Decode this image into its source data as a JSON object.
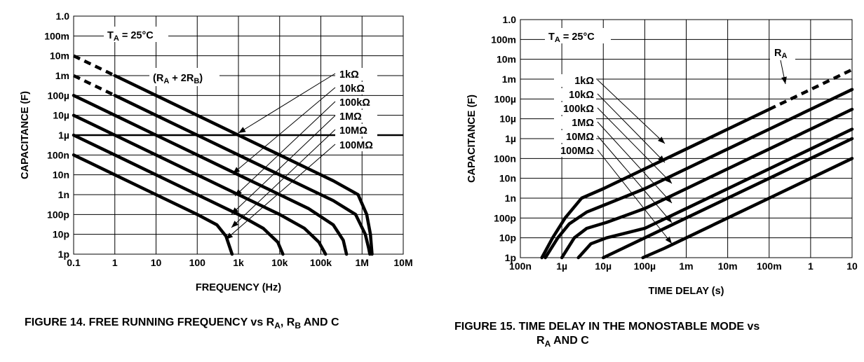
{
  "figure14": {
    "caption_prefix": "FIGURE 14.  FREE RUNNING FREQUENCY vs R",
    "caption_sub_a": "A",
    "caption_mid": ", R",
    "caption_sub_b": "B",
    "caption_suffix": " AND C"
  },
  "figure15": {
    "caption_line1": "FIGURE 15.  TIME DELAY IN THE MONOSTABLE MODE vs",
    "caption_line2_prefix": "R",
    "caption_line2_sub": "A",
    "caption_line2_suffix": " AND C"
  },
  "chart_data": [
    {
      "type": "line",
      "title": "",
      "xlabel": "FREQUENCY (Hz)",
      "ylabel": "CAPACITANCE (F)",
      "x_scale": "log",
      "y_scale": "log",
      "xlim": [
        0.1,
        10000000
      ],
      "ylim": [
        1e-12,
        1
      ],
      "grid": true,
      "x_ticks": [
        "0.1",
        "1",
        "10",
        "100",
        "1k",
        "10k",
        "100k",
        "1M",
        "10M"
      ],
      "y_ticks": [
        "1p",
        "10p",
        "100p",
        "1n",
        "10n",
        "100n",
        "1µ",
        "10µ",
        "100µ",
        "1m",
        "10m",
        "100m",
        "1.0"
      ],
      "annotations": {
        "temperature_prefix": "T",
        "temperature_sub": "A",
        "temperature_suffix": " = 25°C",
        "formula_prefix": "(R",
        "formula_sub_a": "A",
        "formula_mid": " + 2R",
        "formula_sub_b": "B",
        "formula_suffix": ")",
        "reference_line_y": 1e-06
      },
      "series": [
        {
          "name": "1kΩ",
          "x": [
            0.1,
            1,
            10,
            100,
            1000,
            10000,
            50000,
            200000,
            800000,
            1300000,
            1600000,
            1750000
          ],
          "y": [
            0.01,
            0.001,
            0.0001,
            1e-05,
            1e-06,
            1e-07,
            2e-08,
            5e-09,
            1e-09,
            1e-10,
            1e-11,
            1e-12
          ],
          "dashed_until_x": 1.3
        },
        {
          "name": "10kΩ",
          "x": [
            0.1,
            1,
            10,
            100,
            1000,
            10000,
            50000,
            200000,
            700000,
            1200000,
            1450000,
            1550000
          ],
          "y": [
            0.001,
            0.0001,
            1e-05,
            1e-06,
            1e-07,
            1e-08,
            2e-09,
            5e-10,
            1e-10,
            1e-11,
            2e-12,
            1e-12
          ],
          "dashed_until_x": 1.1
        },
        {
          "name": "100kΩ",
          "x": [
            0.1,
            1,
            10,
            100,
            1000,
            10000,
            50000,
            200000,
            350000,
            420000
          ],
          "y": [
            0.0001,
            1e-05,
            1e-06,
            1e-07,
            1e-08,
            1e-09,
            2e-10,
            3e-11,
            5e-12,
            1e-12
          ]
        },
        {
          "name": "1MΩ",
          "x": [
            0.1,
            1,
            10,
            100,
            1000,
            10000,
            40000,
            90000,
            130000
          ],
          "y": [
            1e-05,
            1e-06,
            1e-07,
            1e-08,
            1e-09,
            1e-10,
            2e-11,
            4e-12,
            1e-12
          ]
        },
        {
          "name": "10MΩ",
          "x": [
            0.1,
            1,
            10,
            100,
            1000,
            4000,
            9000,
            12000
          ],
          "y": [
            1e-06,
            1e-07,
            1e-08,
            1e-09,
            1e-10,
            2e-11,
            4e-12,
            1e-12
          ]
        },
        {
          "name": "100MΩ",
          "x": [
            0.1,
            1,
            10,
            100,
            300,
            500,
            700
          ],
          "y": [
            1e-07,
            1e-08,
            1e-09,
            1e-10,
            3e-11,
            8e-12,
            1e-12
          ]
        }
      ]
    },
    {
      "type": "line",
      "title": "",
      "xlabel": "TIME DELAY (s)",
      "ylabel": "CAPACITANCE (F)",
      "x_scale": "log",
      "y_scale": "log",
      "xlim": [
        1e-07,
        10
      ],
      "ylim": [
        1e-12,
        1
      ],
      "grid": true,
      "x_ticks": [
        "100n",
        "1µ",
        "10µ",
        "100µ",
        "1m",
        "10m",
        "100m",
        "1",
        "10"
      ],
      "y_ticks": [
        "1p",
        "10p",
        "100p",
        "1n",
        "10n",
        "100n",
        "1µ",
        "10µ",
        "100µ",
        "1m",
        "10m",
        "100m",
        "1.0"
      ],
      "annotations": {
        "temperature_prefix": "T",
        "temperature_sub": "A",
        "temperature_suffix": " = 25°C",
        "ra_prefix": "R",
        "ra_sub": "A"
      },
      "series": [
        {
          "name": "1kΩ",
          "x": [
            3.3e-07,
            6e-07,
            1.2e-06,
            3e-06,
            1e-05,
            0.0001,
            0.001,
            0.01,
            0.1,
            1,
            10
          ],
          "y": [
            1e-12,
            1e-11,
            1e-10,
            1e-09,
            3e-09,
            3e-08,
            3e-07,
            3e-06,
            3e-05,
            0.0003,
            0.003
          ],
          "dashed_from_x": 1
        },
        {
          "name": "10kΩ",
          "x": [
            4e-07,
            8e-07,
            1.5e-06,
            4e-06,
            1.2e-05,
            0.0001,
            0.001,
            0.01,
            0.1,
            1,
            10
          ],
          "y": [
            1e-12,
            1e-11,
            5e-11,
            2e-10,
            5e-10,
            3e-09,
            3e-08,
            3e-07,
            3e-06,
            3e-05,
            0.0003
          ]
        },
        {
          "name": "100kΩ",
          "x": [
            1e-06,
            2e-06,
            4e-06,
            1.2e-05,
            0.0001,
            0.001,
            0.01,
            0.1,
            1,
            10
          ],
          "y": [
            1e-12,
            1e-11,
            3e-11,
            6e-11,
            3e-10,
            3e-09,
            3e-08,
            3e-07,
            3e-06,
            3e-05
          ]
        },
        {
          "name": "1MΩ",
          "x": [
            2.5e-06,
            5e-06,
            1.2e-05,
            0.0001,
            0.001,
            0.01,
            0.1,
            1,
            10
          ],
          "y": [
            1e-12,
            5e-12,
            1e-11,
            3e-11,
            3e-10,
            3e-09,
            3e-08,
            3e-07,
            3e-06
          ]
        },
        {
          "name": "10MΩ",
          "x": [
            1e-05,
            3e-05,
            0.0001,
            0.001,
            0.01,
            0.1,
            1,
            10
          ],
          "y": [
            1e-12,
            3e-12,
            1e-11,
            1e-10,
            1e-09,
            1e-08,
            1e-07,
            1e-06
          ]
        },
        {
          "name": "100MΩ",
          "x": [
            9e-05,
            0.0003,
            0.001,
            0.01,
            0.1,
            1,
            10
          ],
          "y": [
            1e-12,
            3e-12,
            1e-11,
            1e-10,
            1e-09,
            1e-08,
            1e-07
          ]
        }
      ]
    }
  ]
}
